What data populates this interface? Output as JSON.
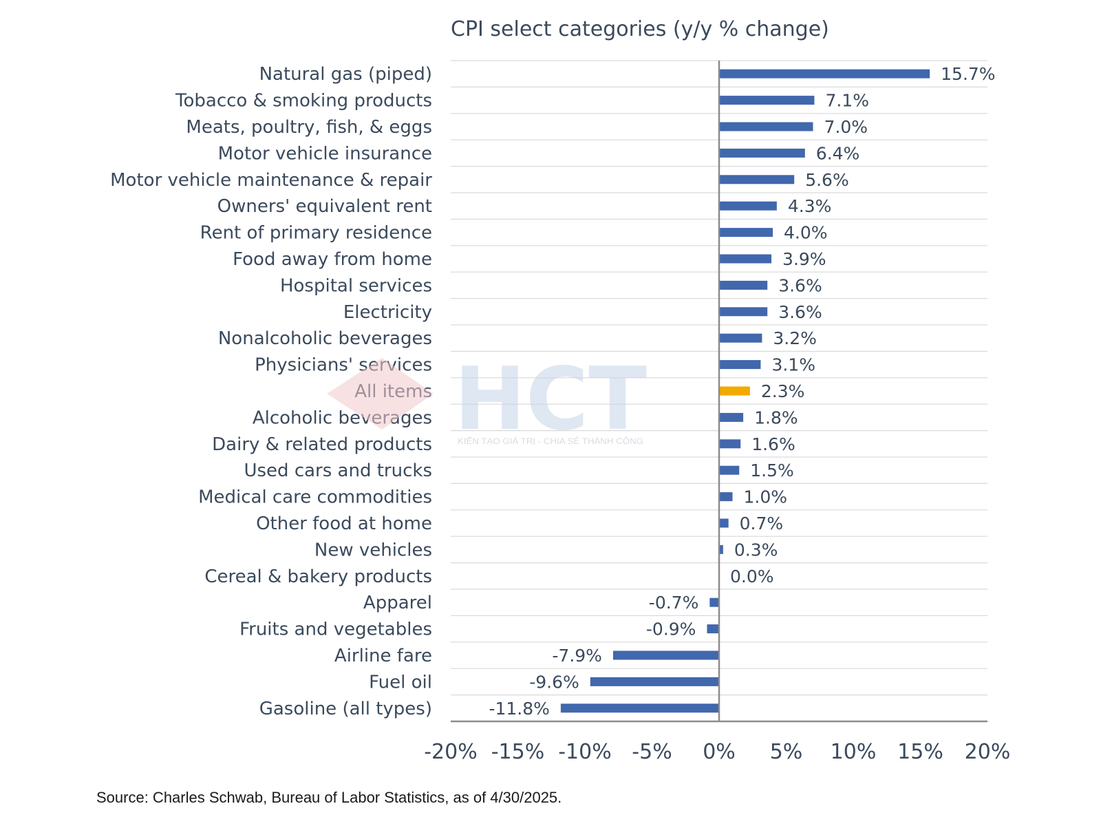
{
  "chart_data": {
    "type": "bar",
    "orientation": "horizontal",
    "title": "CPI select categories (y/y % change)",
    "categories": [
      "Natural gas (piped)",
      "Tobacco & smoking products",
      "Meats, poultry, fish, & eggs",
      "Motor vehicle insurance",
      "Motor vehicle maintenance & repair",
      "Owners' equivalent rent",
      "Rent of primary residence",
      "Food away from home",
      "Hospital services",
      "Electricity",
      "Nonalcoholic beverages",
      "Physicians' services",
      "All items",
      "Alcoholic beverages",
      "Dairy & related products",
      "Used cars and trucks",
      "Medical care commodities",
      "Other food at home",
      "New vehicles",
      "Cereal & bakery products",
      "Apparel",
      "Fruits and vegetables",
      "Airline fare",
      "Fuel oil",
      "Gasoline (all types)"
    ],
    "values": [
      15.7,
      7.1,
      7.0,
      6.4,
      5.6,
      4.3,
      4.0,
      3.9,
      3.6,
      3.6,
      3.2,
      3.1,
      2.3,
      1.8,
      1.6,
      1.5,
      1.0,
      0.7,
      0.3,
      0.0,
      -0.7,
      -0.9,
      -7.9,
      -9.6,
      -11.8
    ],
    "value_labels": [
      "15.7%",
      "7.1%",
      "7.0%",
      "6.4%",
      "5.6%",
      "4.3%",
      "4.0%",
      "3.9%",
      "3.6%",
      "3.6%",
      "3.2%",
      "3.1%",
      "2.3%",
      "1.8%",
      "1.6%",
      "1.5%",
      "1.0%",
      "0.7%",
      "0.3%",
      "0.0%",
      "-0.7%",
      "-0.9%",
      "-7.9%",
      "-9.6%",
      "-11.8%"
    ],
    "highlight": "All items",
    "xlim": [
      -20,
      20
    ],
    "x_ticks": [
      -20,
      -15,
      -10,
      -5,
      0,
      5,
      10,
      15,
      20
    ],
    "x_tick_labels": [
      "-20%",
      "-15%",
      "-10%",
      "-5%",
      "0%",
      "5%",
      "10%",
      "15%",
      "20%"
    ],
    "grid": "horizontal",
    "colors": {
      "bar": "#4167ad",
      "highlight": "#f2a900",
      "grid": "#d9d9d9",
      "axis": "#8c8c8c"
    }
  },
  "source": "Source: Charles Schwab, Bureau of Labor Statistics, as of 4/30/2025.",
  "watermark": {
    "logo": "HCT",
    "tagline": "KIẾN TẠO GIÁ TRỊ - CHIA SẺ THÀNH CÔNG",
    "colors": {
      "logo": "#c5d5e8",
      "diamond": "#f0c8cc"
    }
  }
}
